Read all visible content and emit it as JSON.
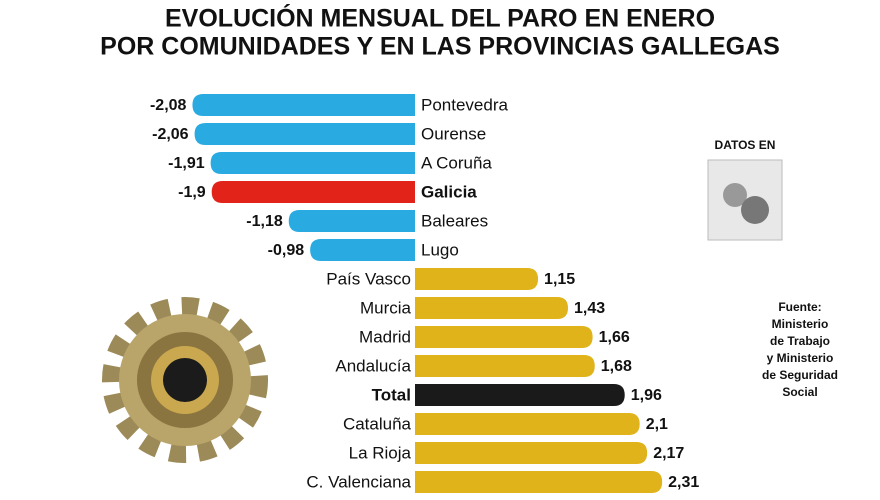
{
  "chart_data": {
    "type": "bar",
    "orientation": "horizontal",
    "title": [
      "EVOLUCIÓN MENSUAL DEL PARO EN ENERO",
      "POR COMUNIDADES Y EN LAS PROVINCIAS GALLEGAS"
    ],
    "categories": [
      "Pontevedra",
      "Ourense",
      "A Coruña",
      "Galicia",
      "Baleares",
      "Lugo",
      "País Vasco",
      "Murcia",
      "Madrid",
      "Andalucía",
      "Total",
      "Cataluña",
      "La Rioja",
      "C. Valenciana"
    ],
    "values": [
      -2.08,
      -2.06,
      -1.91,
      -1.9,
      -1.18,
      -0.98,
      1.15,
      1.43,
      1.66,
      1.68,
      1.96,
      2.1,
      2.17,
      2.31
    ],
    "value_labels": [
      "-2,08",
      "-2,06",
      "-1,91",
      "-1,9",
      "-1,18",
      "-0,98",
      "1,15",
      "1,43",
      "1,66",
      "1,68",
      "1,96",
      "2,1",
      "2,17",
      "2,31"
    ],
    "colors": [
      "#29abe2",
      "#29abe2",
      "#29abe2",
      "#e2231a",
      "#29abe2",
      "#29abe2",
      "#e0b31b",
      "#e0b31b",
      "#e0b31b",
      "#e0b31b",
      "#1a1a1a",
      "#e0b31b",
      "#e0b31b",
      "#e0b31b"
    ],
    "emphasis": [
      false,
      false,
      false,
      true,
      false,
      false,
      false,
      false,
      false,
      false,
      true,
      false,
      false,
      false
    ],
    "badge": "DATOS EN",
    "source": [
      "Fuente:",
      "Ministerio",
      "de Trabajo",
      "y Ministerio",
      "de Seguridad",
      "Social"
    ]
  }
}
